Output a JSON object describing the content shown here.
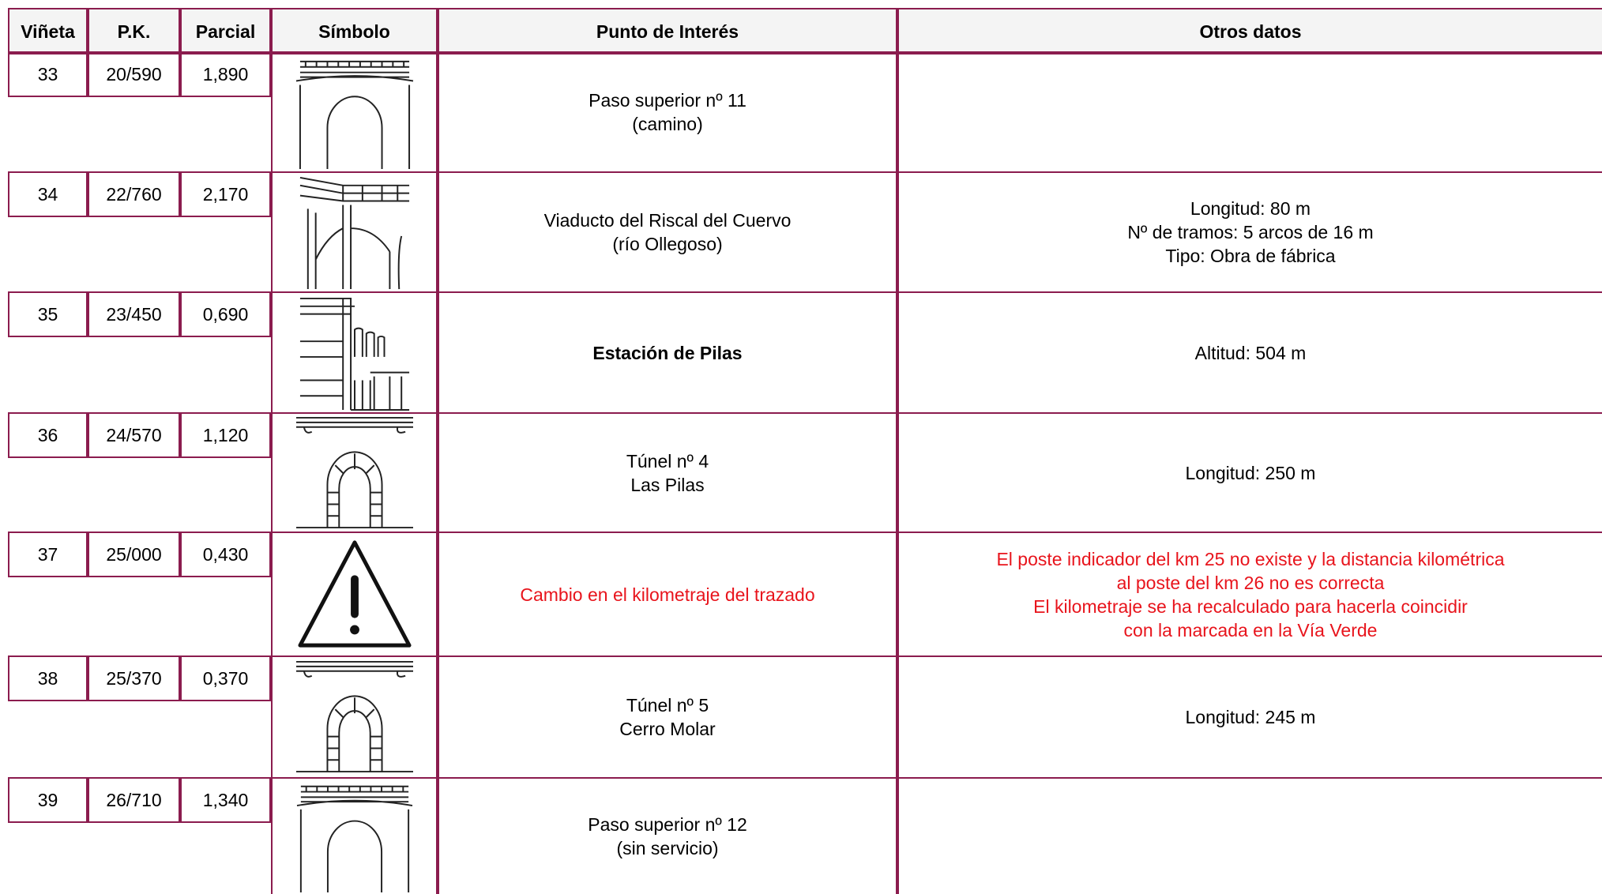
{
  "header": [
    "Viñeta",
    "P.K.",
    "Parcial",
    "Símbolo",
    "Punto de Interés",
    "Otros datos"
  ],
  "rows": [
    {
      "vineta": "33",
      "pk": "20/590",
      "parcial": "1,890",
      "punto": [
        "Paso superior nº 11",
        "(camino)"
      ],
      "otros": []
    },
    {
      "vineta": "34",
      "pk": "22/760",
      "parcial": "2,170",
      "punto": [
        "Viaducto del Riscal del Cuervo",
        "(río Ollegoso)"
      ],
      "otros": [
        "Longitud: 80 m",
        "Nº de tramos: 5 arcos de 16 m",
        "Tipo: Obra de fábrica"
      ]
    },
    {
      "vineta": "35",
      "pk": "23/450",
      "parcial": "0,690",
      "punto": [
        "Estación de Pilas"
      ],
      "otros": [
        "Altitud: 504 m"
      ]
    },
    {
      "vineta": "36",
      "pk": "24/570",
      "parcial": "1,120",
      "punto": [
        "Túnel nº 4",
        "Las Pilas"
      ],
      "otros": [
        "Longitud: 250 m"
      ]
    },
    {
      "vineta": "37",
      "pk": "25/000",
      "parcial": "0,430",
      "punto": [
        "Cambio en el kilometraje del trazado"
      ],
      "otros": [
        "El poste indicador del km 25 no existe y la distancia kilométrica",
        "al poste del km 26 no es correcta",
        "El kilometraje se ha recalculado para hacerla coincidir",
        "con la marcada en la Vía Verde"
      ]
    },
    {
      "vineta": "38",
      "pk": "25/370",
      "parcial": "0,370",
      "punto": [
        "Túnel nº 5",
        "Cerro Molar"
      ],
      "otros": [
        "Longitud: 245 m"
      ]
    },
    {
      "vineta": "39",
      "pk": "26/710",
      "parcial": "1,340",
      "punto": [
        "Paso superior nº 12",
        "(sin servicio)"
      ],
      "otros": []
    }
  ]
}
